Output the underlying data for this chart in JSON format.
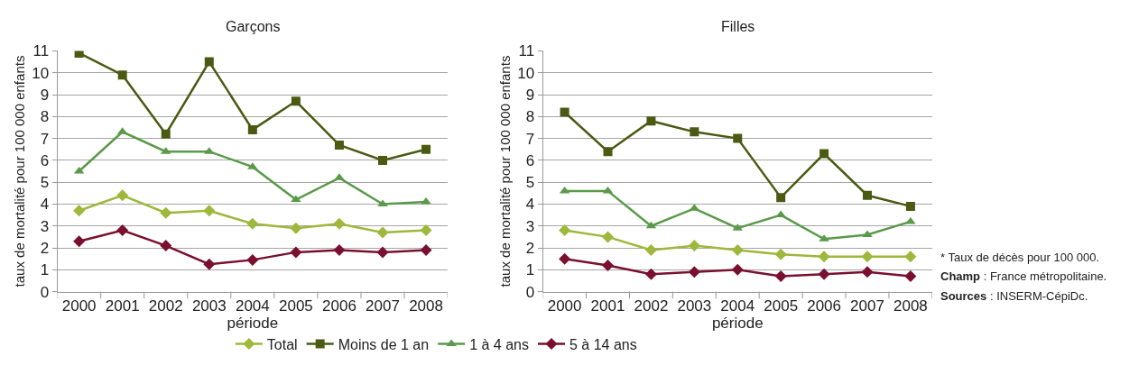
{
  "chart_data": [
    {
      "type": "line",
      "title": "Garçons",
      "xlabel": "période",
      "ylabel": "taux de mortalité pour 100 000 enfants",
      "categories": [
        "2000",
        "2001",
        "2002",
        "2003",
        "2004",
        "2005",
        "2006",
        "2007",
        "2008"
      ],
      "ylim": [
        0,
        11
      ],
      "yticks": [
        0,
        1,
        2,
        3,
        4,
        5,
        6,
        7,
        8,
        9,
        10,
        11
      ],
      "grid": "y",
      "legend": "bottom",
      "series": [
        {
          "name": "Total",
          "color": "#9db83a",
          "marker": "diamond",
          "values": [
            3.7,
            4.4,
            3.6,
            3.7,
            3.1,
            2.9,
            3.1,
            2.7,
            2.8
          ]
        },
        {
          "name": "Moins de 1 an",
          "color": "#4a5a12",
          "marker": "square",
          "values": [
            10.9,
            9.9,
            7.2,
            10.5,
            7.4,
            8.7,
            6.7,
            6.0,
            6.5
          ]
        },
        {
          "name": "1 à 4 ans",
          "color": "#5a9a4a",
          "marker": "triangle",
          "values": [
            5.5,
            7.3,
            6.4,
            6.4,
            5.7,
            4.2,
            5.2,
            4.0,
            4.1
          ]
        },
        {
          "name": "5 à 14 ans",
          "color": "#7a1030",
          "marker": "diamond",
          "values": [
            2.3,
            2.8,
            2.1,
            1.25,
            1.45,
            1.8,
            1.9,
            1.8,
            1.9
          ]
        }
      ]
    },
    {
      "type": "line",
      "title": "Filles",
      "xlabel": "période",
      "ylabel": "taux de mortalité pour 100 000 enfants",
      "categories": [
        "2000",
        "2001",
        "2002",
        "2003",
        "2004",
        "2005",
        "2006",
        "2007",
        "2008"
      ],
      "ylim": [
        0,
        11
      ],
      "yticks": [
        0,
        1,
        2,
        3,
        4,
        5,
        6,
        7,
        8,
        9,
        10,
        11
      ],
      "grid": "y",
      "annotations": [
        "* Taux de décès pour 100 000.",
        "Champ : France métropolitaine.",
        "Sources : INSERM-CépiDc."
      ],
      "series": [
        {
          "color": "#9db83a",
          "marker": "diamond",
          "values": [
            2.8,
            2.5,
            1.9,
            2.1,
            1.9,
            1.7,
            1.6,
            1.6,
            1.6
          ]
        },
        {
          "color": "#4a5a12",
          "marker": "square",
          "values": [
            8.2,
            6.4,
            7.8,
            7.3,
            7.0,
            4.3,
            6.3,
            4.4,
            3.9
          ]
        },
        {
          "color": "#5a9a4a",
          "marker": "triangle",
          "values": [
            4.6,
            4.6,
            3.0,
            3.8,
            2.9,
            3.5,
            2.4,
            2.6,
            3.2
          ]
        },
        {
          "color": "#7a1030",
          "marker": "diamond",
          "values": [
            1.5,
            1.2,
            0.8,
            0.9,
            1.0,
            0.7,
            0.8,
            0.9,
            0.7
          ]
        }
      ]
    }
  ]
}
